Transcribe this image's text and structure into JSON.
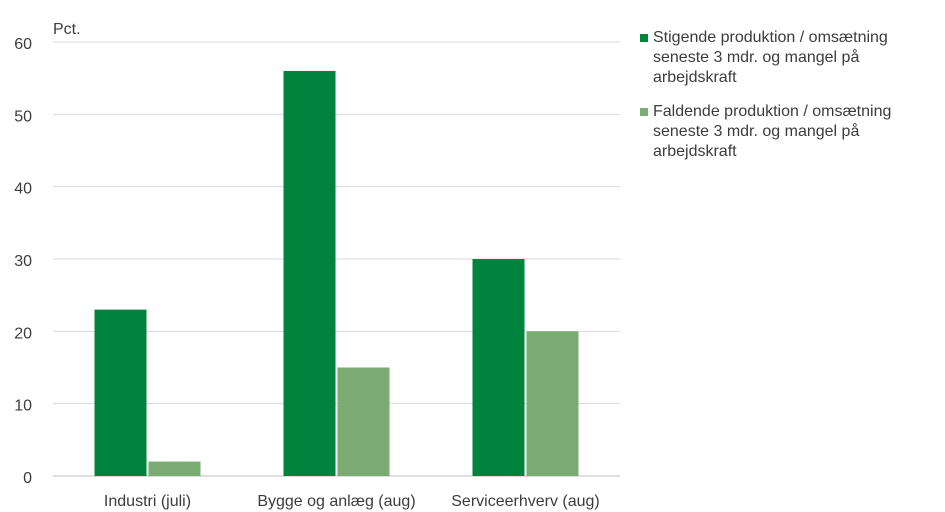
{
  "chart_data": {
    "type": "bar",
    "ylabel": "Pct.",
    "ylim": [
      0,
      60
    ],
    "yticks": [
      0,
      10,
      20,
      30,
      40,
      50,
      60
    ],
    "grid": true,
    "legend_position": "right",
    "categories": [
      "Industri (juli)",
      "Bygge og anlæg (aug)",
      "Serviceerhverv (aug)"
    ],
    "series": [
      {
        "name": "Stigende produktion / omsætning\nseneste 3 mdr.  og mangel på\narbejdskraft",
        "color": "#00843d",
        "values": [
          23,
          56,
          30
        ]
      },
      {
        "name": "Faldende produktion / omsætning\nseneste 3 mdr. og mangel på\narbejdskraft",
        "color": "#7aab72",
        "values": [
          2,
          15,
          20
        ]
      }
    ]
  }
}
